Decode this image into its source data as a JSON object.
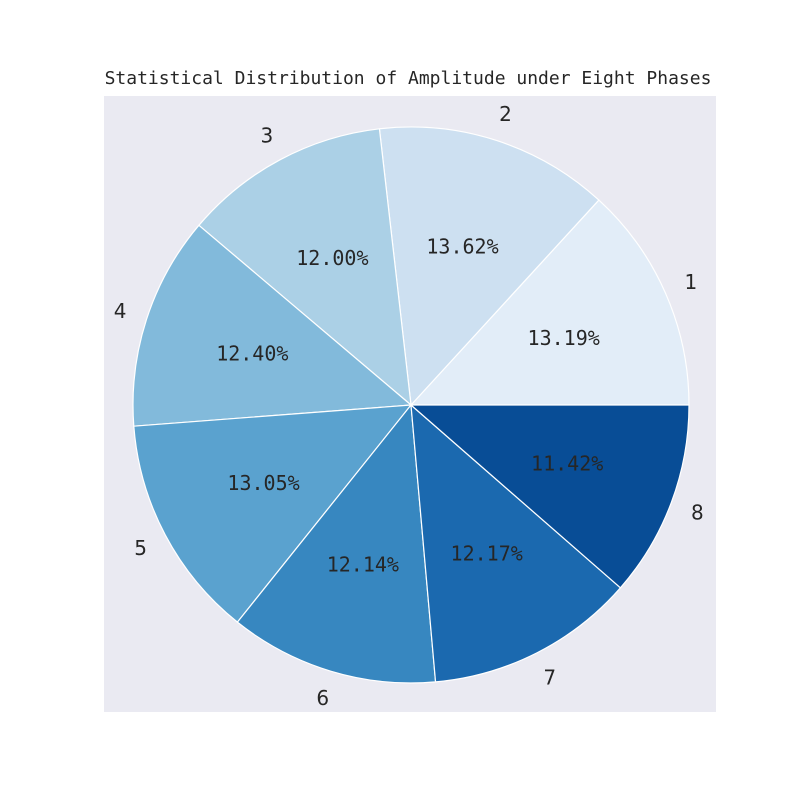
{
  "chart_data": {
    "type": "pie",
    "title": "Statistical Distribution of Amplitude under Eight Phases",
    "labels": [
      "1",
      "2",
      "3",
      "4",
      "5",
      "6",
      "7",
      "8"
    ],
    "values": [
      13.19,
      13.62,
      12.0,
      12.4,
      13.05,
      12.14,
      12.17,
      11.42
    ],
    "value_labels": [
      "13.19%",
      "13.62%",
      "12.00%",
      "12.40%",
      "13.05%",
      "12.14%",
      "12.17%",
      "11.42%"
    ],
    "colors": [
      "#e2edf8",
      "#cde0f1",
      "#abd0e6",
      "#82badb",
      "#5aa2cf",
      "#3787c0",
      "#1b69af",
      "#084d96"
    ],
    "start_angle_deg": 0,
    "direction": "counterclockwise",
    "background": "#eaeaf2"
  }
}
